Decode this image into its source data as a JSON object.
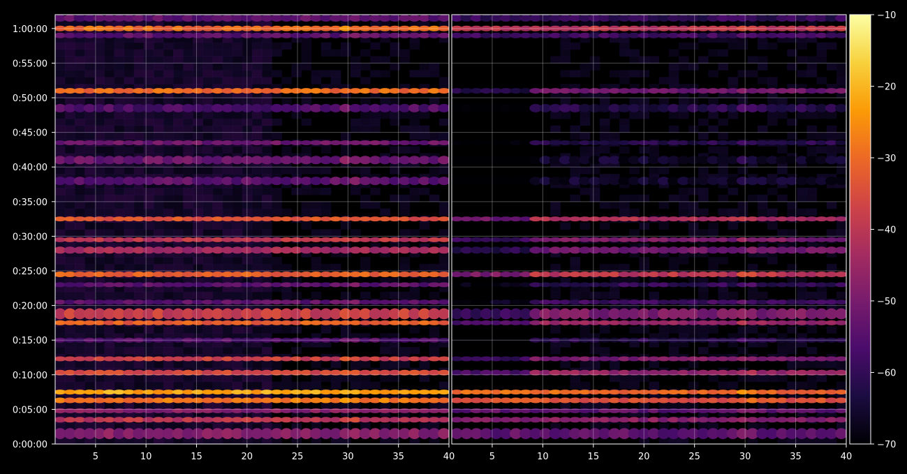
{
  "chart_data": {
    "type": "heatmap",
    "title": "",
    "background": "#000000",
    "colormap": "inferno",
    "colormap_stops": [
      "#000004",
      "#1b0c41",
      "#4a0c6b",
      "#781c6d",
      "#a52c60",
      "#cf4446",
      "#ed6925",
      "#fb9b06",
      "#f7d13d",
      "#fcffa4"
    ],
    "panels": [
      {
        "name": "",
        "x_ticks": [
          "5",
          "10",
          "15",
          "20",
          "25",
          "30",
          "35",
          "40"
        ],
        "x_range": [
          1,
          40
        ],
        "grid": true
      },
      {
        "name": "",
        "x_ticks": [
          "5",
          "10",
          "15",
          "20",
          "25",
          "30",
          "35",
          "40"
        ],
        "x_range": [
          1,
          40
        ],
        "grid": true
      }
    ],
    "y_ticks": [
      "0:00:00",
      "0:05:00",
      "0:10:00",
      "0:15:00",
      "0:20:00",
      "0:25:00",
      "0:30:00",
      "0:35:00",
      "0:40:00",
      "0:45:00",
      "0:50:00",
      "0:55:00",
      "1:00:00"
    ],
    "y_range_minutes": [
      0,
      62
    ],
    "colorbar": {
      "ticks": [
        "−10",
        "−20",
        "−30",
        "−40",
        "−50",
        "−60",
        "−70"
      ],
      "range": [
        -70,
        -10
      ],
      "placement": "right"
    },
    "bands": [
      {
        "t": 61.5,
        "left": -54,
        "right": -60,
        "span": 1.0
      },
      {
        "t": 60.0,
        "left": -30,
        "right": -40,
        "span": 0.8
      },
      {
        "t": 59.0,
        "left": -54,
        "right": -58,
        "span": 0.8
      },
      {
        "t": 51.0,
        "left": -30,
        "right": -52,
        "span": 0.8
      },
      {
        "t": 48.5,
        "left": -56,
        "right": -62,
        "span": 1.2
      },
      {
        "t": 43.5,
        "left": -52,
        "right": -62,
        "span": 0.6
      },
      {
        "t": 41.0,
        "left": -52,
        "right": -66,
        "span": 1.2
      },
      {
        "t": 38.0,
        "left": -54,
        "right": -66,
        "span": 1.2
      },
      {
        "t": 32.5,
        "left": -34,
        "right": -42,
        "span": 0.7
      },
      {
        "t": 29.5,
        "left": -40,
        "right": -50,
        "span": 0.6
      },
      {
        "t": 28.0,
        "left": -44,
        "right": -52,
        "span": 1.0
      },
      {
        "t": 24.5,
        "left": -32,
        "right": -40,
        "span": 0.8
      },
      {
        "t": 23.0,
        "left": -54,
        "right": -60,
        "span": 0.6
      },
      {
        "t": 20.5,
        "left": -54,
        "right": -58,
        "span": 0.6
      },
      {
        "t": 18.8,
        "left": -38,
        "right": -50,
        "span": 1.6
      },
      {
        "t": 17.5,
        "left": -32,
        "right": -46,
        "span": 0.6
      },
      {
        "t": 15.0,
        "left": -56,
        "right": -62,
        "span": 0.6
      },
      {
        "t": 12.3,
        "left": -38,
        "right": -50,
        "span": 0.5
      },
      {
        "t": 10.3,
        "left": -36,
        "right": -46,
        "span": 0.8
      },
      {
        "t": 7.5,
        "left": -22,
        "right": -30,
        "span": 0.6
      },
      {
        "t": 6.3,
        "left": -28,
        "right": -34,
        "span": 0.8
      },
      {
        "t": 4.8,
        "left": -48,
        "right": -54,
        "span": 0.6
      },
      {
        "t": 3.5,
        "left": -40,
        "right": -48,
        "span": 0.8
      },
      {
        "t": 1.5,
        "left": -48,
        "right": -54,
        "span": 1.6
      }
    ]
  }
}
